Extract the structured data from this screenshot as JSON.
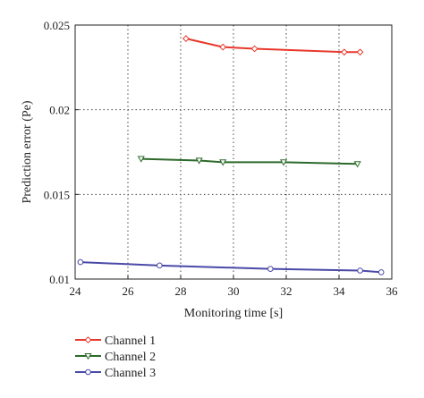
{
  "chart_data": {
    "type": "line",
    "xlabel": "Monitoring time [s]",
    "ylabel": "Prediction error (Pe)",
    "xlim": [
      24,
      36
    ],
    "ylim": [
      0.01,
      0.025
    ],
    "xticks": [
      24,
      26,
      28,
      30,
      32,
      34,
      36
    ],
    "xtick_labels": [
      "24",
      "26",
      "28",
      "30",
      "32",
      "34",
      "36"
    ],
    "yticks": [
      0.01,
      0.015,
      0.02,
      0.025
    ],
    "ytick_labels": [
      "0.01",
      "0.015",
      "0.02",
      "0.025"
    ],
    "grid": "dotted",
    "legend_position": "below-left",
    "series": [
      {
        "name": "Channel 1",
        "color": "#e8382b",
        "marker": "diamond",
        "x": [
          28.2,
          29.6,
          30.8,
          34.2,
          34.8
        ],
        "y": [
          0.0242,
          0.0237,
          0.0236,
          0.0234,
          0.0234
        ]
      },
      {
        "name": "Channel 2",
        "color": "#2d6a2b",
        "marker": "triangle-down",
        "x": [
          26.5,
          28.7,
          29.6,
          31.9,
          34.7
        ],
        "y": [
          0.0171,
          0.017,
          0.0169,
          0.0169,
          0.0168
        ]
      },
      {
        "name": "Channel 3",
        "color": "#4a4aa8",
        "marker": "circle",
        "x": [
          24.2,
          27.2,
          31.4,
          34.8,
          35.6
        ],
        "y": [
          0.011,
          0.0108,
          0.0106,
          0.0105,
          0.0104
        ]
      }
    ]
  }
}
